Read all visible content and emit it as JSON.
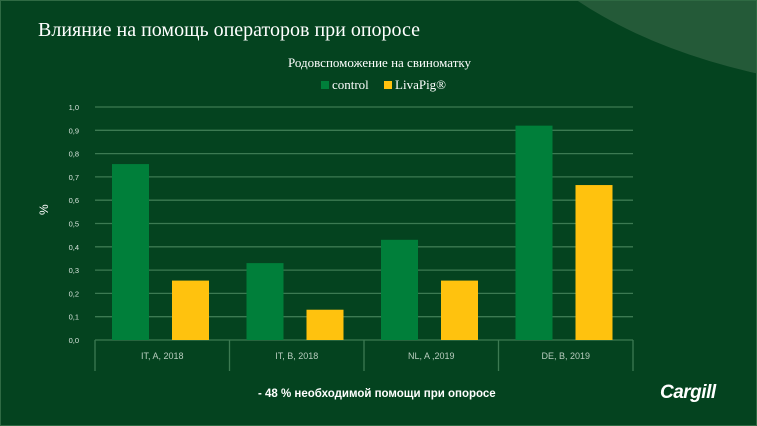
{
  "title": "Влияние на помощь операторов при опоросе",
  "footer_note": "- 48 % необходимой помощи при опоросе",
  "logo_text": "Cargill",
  "chart_data": {
    "type": "bar",
    "title": "Родовспоможение на свиноматку",
    "xlabel": "",
    "ylabel": "%",
    "ylim": [
      0,
      1.0
    ],
    "yticks": [
      "0,0",
      "0,1",
      "0,2",
      "0,3",
      "0,4",
      "0,5",
      "0,6",
      "0,7",
      "0,8",
      "0,9",
      "1,0"
    ],
    "grid": true,
    "legend_position": "top-center",
    "categories": [
      "IT, A, 2018",
      "IT, B, 2018",
      "NL, A ,2019",
      "DE, B, 2019"
    ],
    "series": [
      {
        "name": "control",
        "color": "#007f3a",
        "values": [
          0.755,
          0.33,
          0.43,
          0.92
        ]
      },
      {
        "name": "LivaPig®",
        "color": "#ffc20e",
        "values": [
          0.255,
          0.13,
          0.255,
          0.665
        ]
      }
    ]
  }
}
